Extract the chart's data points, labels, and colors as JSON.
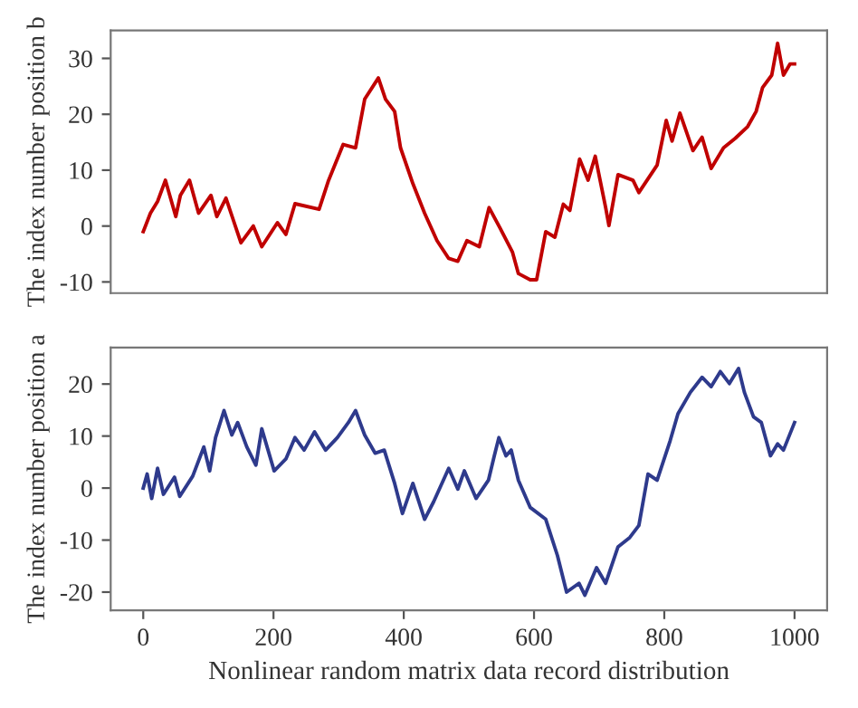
{
  "chart_data": [
    {
      "type": "line",
      "ylabel": "The index number position b",
      "xlim": [
        -50,
        1050
      ],
      "ylim": [
        -12,
        35
      ],
      "yticks": [
        -10,
        0,
        10,
        20,
        30
      ],
      "tick_labels": "y",
      "grid": false,
      "series": [
        {
          "color": "#c00000",
          "x": [
            0,
            11,
            22,
            34,
            50,
            57,
            71,
            85,
            104,
            113,
            127,
            150,
            169,
            182,
            206,
            219,
            233,
            270,
            284,
            307,
            326,
            340,
            361,
            372,
            386,
            395,
            414,
            432,
            451,
            469,
            483,
            497,
            516,
            531,
            548,
            567,
            576,
            594,
            604,
            618,
            632,
            645,
            655,
            670,
            683,
            694,
            710,
            715,
            729,
            752,
            761,
            789,
            803,
            812,
            824,
            844,
            858,
            872,
            891,
            909,
            928,
            941,
            951,
            965,
            974,
            983,
            993,
            1000
          ],
          "values": [
            -1,
            2.3,
            4.4,
            8.2,
            1.7,
            5.5,
            8.2,
            2.3,
            5.5,
            1.7,
            5,
            -3,
            0,
            -3.7,
            0.6,
            -1.5,
            4,
            3,
            8,
            14.6,
            14,
            22.7,
            26.5,
            22.7,
            20.5,
            14,
            7.6,
            2.3,
            -2.6,
            -5.8,
            -6.3,
            -2.6,
            -3.7,
            3.3,
            -0.4,
            -4.7,
            -8.5,
            -9.6,
            -9.6,
            -1,
            -2,
            3.9,
            2.8,
            12,
            8.2,
            12.5,
            3.3,
            0.1,
            9.2,
            8.2,
            6,
            10.9,
            18.9,
            15.2,
            20.2,
            13.5,
            15.9,
            10.3,
            14,
            15.7,
            17.8,
            20.5,
            24.8,
            27,
            32.7,
            27,
            29,
            29
          ]
        }
      ]
    },
    {
      "type": "line",
      "xlabel": "Nonlinear random matrix data record distribution",
      "ylabel": "The index number position a",
      "xlim": [
        -50,
        1050
      ],
      "xticks": [
        0,
        200,
        400,
        600,
        800,
        1000
      ],
      "ylim": [
        -23.5,
        27
      ],
      "yticks": [
        -20,
        -10,
        0,
        10,
        20
      ],
      "grid": false,
      "series": [
        {
          "color": "#2e3a8c",
          "x": [
            0,
            6,
            13,
            22,
            31,
            48,
            56,
            76,
            93,
            102,
            111,
            124,
            136,
            145,
            159,
            173,
            182,
            201,
            219,
            233,
            247,
            263,
            280,
            298,
            315,
            326,
            340,
            356,
            370,
            386,
            398,
            414,
            432,
            446,
            469,
            483,
            493,
            511,
            530,
            539,
            546,
            557,
            565,
            576,
            594,
            618,
            636,
            650,
            669,
            678,
            696,
            710,
            729,
            747,
            761,
            775,
            789,
            809,
            821,
            840,
            858,
            872,
            886,
            900,
            914,
            923,
            937,
            949,
            963,
            974,
            983,
            1000
          ],
          "values": [
            0,
            2.7,
            -2,
            3.8,
            -1.2,
            2.1,
            -1.6,
            2.3,
            7.9,
            3.3,
            9.7,
            14.9,
            10.2,
            12.6,
            7.9,
            4.4,
            11.4,
            3.3,
            5.6,
            9.7,
            7.3,
            10.8,
            7.3,
            9.7,
            12.6,
            14.9,
            10.2,
            6.7,
            7.3,
            0.9,
            -4.9,
            0.9,
            -6,
            -2.6,
            3.8,
            -0.2,
            3.3,
            -2,
            1.5,
            6.2,
            9.7,
            6.2,
            7.3,
            1.5,
            -3.7,
            -6,
            -13,
            -20,
            -18.3,
            -20.6,
            -15.3,
            -18.3,
            -11.3,
            -9.5,
            -7.2,
            2.7,
            1.5,
            9.1,
            14.3,
            18.4,
            21.3,
            19.5,
            22.4,
            20.1,
            23,
            18.4,
            13.7,
            12.6,
            6.2,
            8.5,
            7.3,
            12.6
          ]
        }
      ]
    }
  ]
}
